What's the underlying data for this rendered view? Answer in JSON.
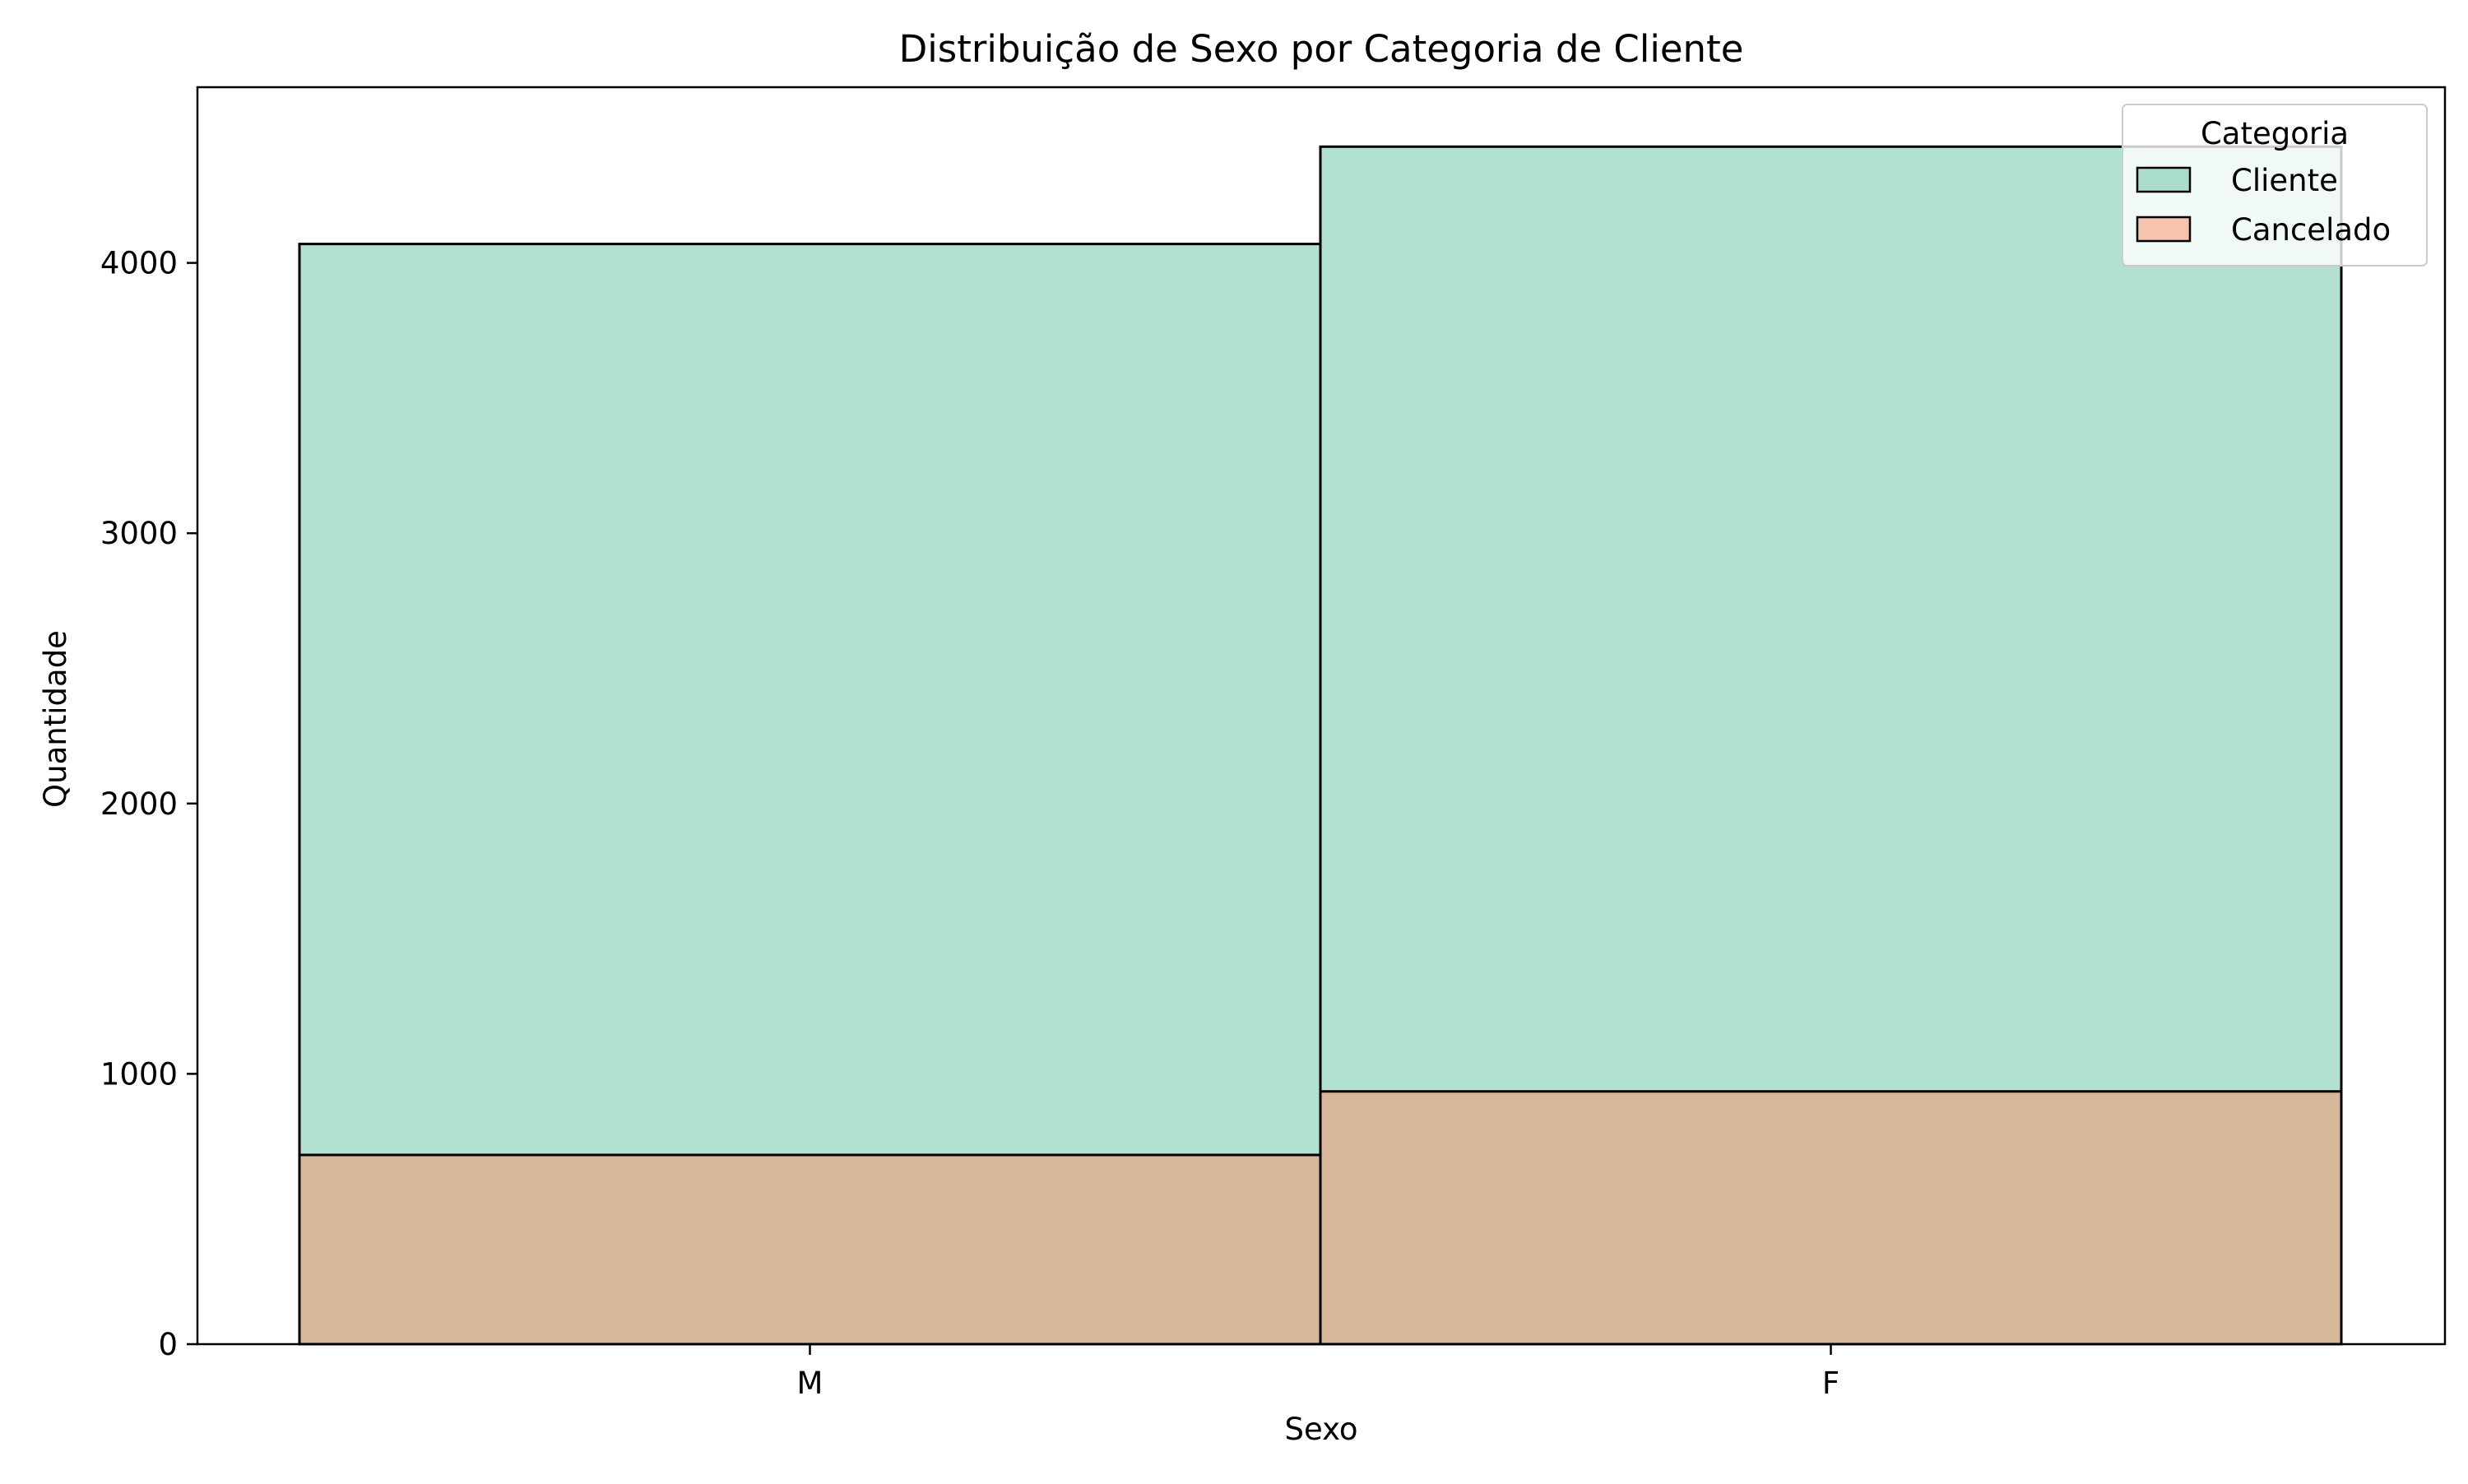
{
  "chart_data": {
    "type": "bar",
    "title": "Distribuição de Sexo por Categoria de Cliente",
    "xlabel": "Sexo",
    "ylabel": "Quantidade",
    "categories": [
      "M",
      "F"
    ],
    "series": [
      {
        "name": "Cliente",
        "values": [
          4070,
          4430
        ],
        "color": "#66c2a5"
      },
      {
        "name": "Cancelado",
        "values": [
          700,
          935
        ],
        "color": "#fc8d62"
      }
    ],
    "overlay": true,
    "ylim": [
      0,
      4650
    ],
    "yticks": [
      0,
      1000,
      2000,
      3000,
      4000
    ],
    "grid": false,
    "legend": {
      "title": "Categoria",
      "placement": "top-right"
    }
  }
}
